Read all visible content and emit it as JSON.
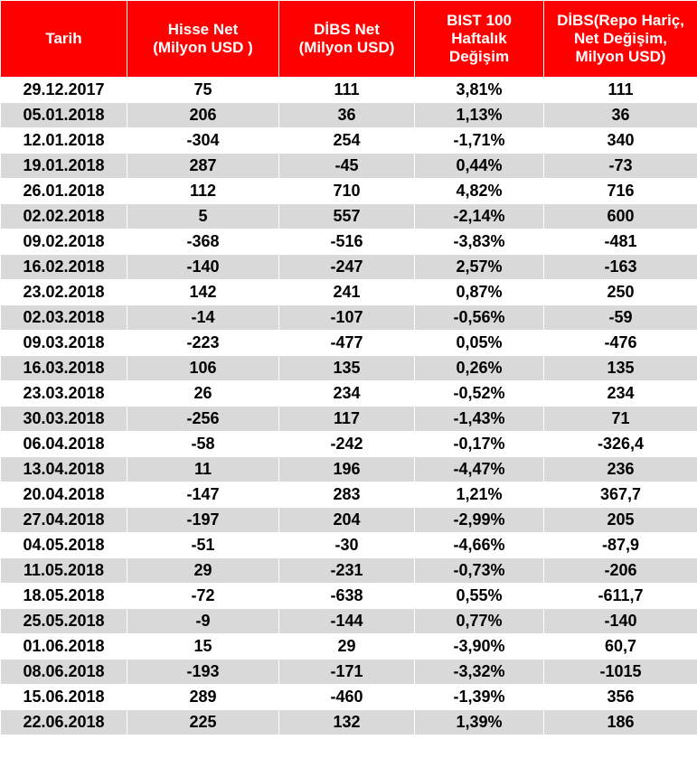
{
  "colors": {
    "header_bg": "#ff0000",
    "header_text": "#ffffff",
    "stripe": "#d9d9d9",
    "row_bg": "#ffffff"
  },
  "headers": [
    [
      "Tarih"
    ],
    [
      "Hisse Net",
      "(Milyon USD )"
    ],
    [
      "DİBS Net",
      "(Milyon USD)"
    ],
    [
      "BIST 100",
      "Haftalık",
      "Değişim"
    ],
    [
      "DİBS(Repo Hariç,",
      "Net Değişim,",
      "Milyon USD)"
    ]
  ],
  "rows": [
    [
      "29.12.2017",
      "75",
      "111",
      "3,81%",
      "111"
    ],
    [
      "05.01.2018",
      "206",
      "36",
      "1,13%",
      "36"
    ],
    [
      "12.01.2018",
      "-304",
      "254",
      "-1,71%",
      "340"
    ],
    [
      "19.01.2018",
      "287",
      "-45",
      "0,44%",
      "-73"
    ],
    [
      "26.01.2018",
      "112",
      "710",
      "4,82%",
      "716"
    ],
    [
      "02.02.2018",
      "5",
      "557",
      "-2,14%",
      "600"
    ],
    [
      "09.02.2018",
      "-368",
      "-516",
      "-3,83%",
      "-481"
    ],
    [
      "16.02.2018",
      "-140",
      "-247",
      "2,57%",
      "-163"
    ],
    [
      "23.02.2018",
      "142",
      "241",
      "0,87%",
      "250"
    ],
    [
      "02.03.2018",
      "-14",
      "-107",
      "-0,56%",
      "-59"
    ],
    [
      "09.03.2018",
      "-223",
      "-477",
      "0,05%",
      "-476"
    ],
    [
      "16.03.2018",
      "106",
      "135",
      "0,26%",
      "135"
    ],
    [
      "23.03.2018",
      "26",
      "234",
      "-0,52%",
      "234"
    ],
    [
      "30.03.2018",
      "-256",
      "117",
      "-1,43%",
      "71"
    ],
    [
      "06.04.2018",
      "-58",
      "-242",
      "-0,17%",
      "-326,4"
    ],
    [
      "13.04.2018",
      "11",
      "196",
      "-4,47%",
      "236"
    ],
    [
      "20.04.2018",
      "-147",
      "283",
      "1,21%",
      "367,7"
    ],
    [
      "27.04.2018",
      "-197",
      "204",
      "-2,99%",
      "205"
    ],
    [
      "04.05.2018",
      "-51",
      "-30",
      "-4,66%",
      "-87,9"
    ],
    [
      "11.05.2018",
      "29",
      "-231",
      "-0,73%",
      "-206"
    ],
    [
      "18.05.2018",
      "-72",
      "-638",
      "0,55%",
      "-611,7"
    ],
    [
      "25.05.2018",
      "-9",
      "-144",
      "0,77%",
      "-140"
    ],
    [
      "01.06.2018",
      "15",
      "29",
      "-3,90%",
      "60,7"
    ],
    [
      "08.06.2018",
      "-193",
      "-171",
      "-3,32%",
      "-1015"
    ],
    [
      "15.06.2018",
      "289",
      "-460",
      "-1,39%",
      "356"
    ],
    [
      "22.06.2018",
      "225",
      "132",
      "1,39%",
      "186"
    ]
  ]
}
